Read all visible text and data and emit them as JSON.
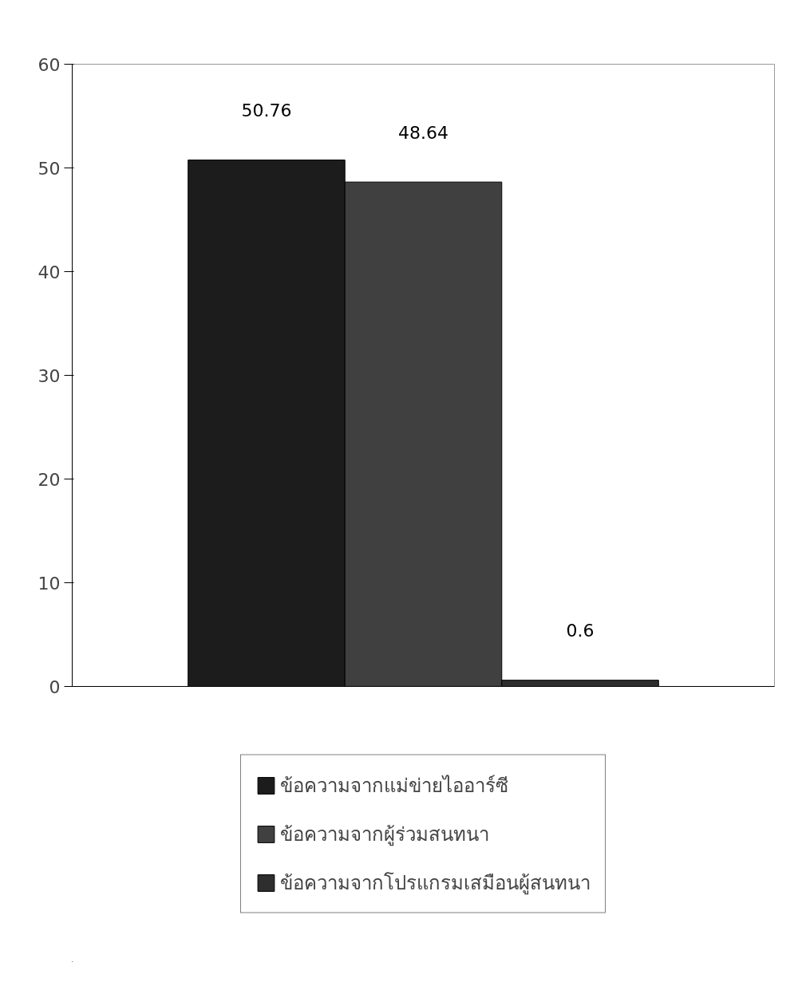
{
  "chart_data": {
    "type": "bar",
    "categories": [
      null
    ],
    "series": [
      {
        "name": "ข้อความจากแม่ข่ายไออาร์ซี",
        "color": "#1c1c1c",
        "values": [
          50.76
        ]
      },
      {
        "name": "ข้อความจากผู้ร่วมสนทนา",
        "color": "#404040",
        "values": [
          48.64
        ]
      },
      {
        "name": "ข้อความจากโปรแกรมเสมือนผู้สนทนา",
        "color": "#2e2e2e",
        "values": [
          0.6
        ]
      }
    ],
    "ylim": [
      0,
      60
    ],
    "yticks": [
      0,
      10,
      20,
      30,
      40,
      50,
      60
    ],
    "data_labels": true,
    "legend": "bottom",
    "grid": false
  }
}
